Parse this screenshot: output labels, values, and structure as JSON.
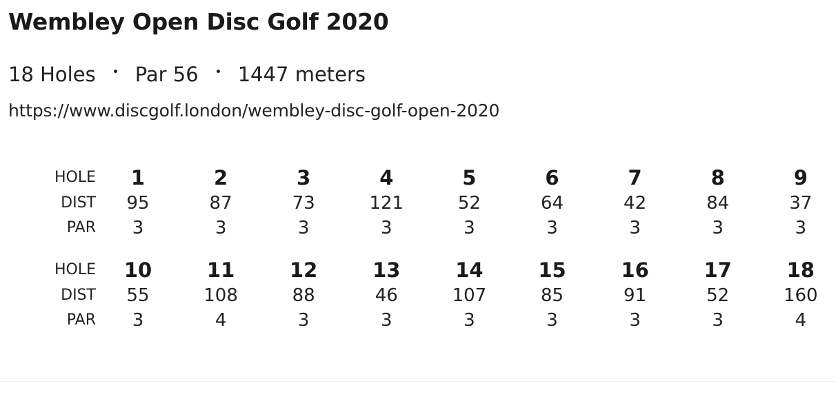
{
  "course": {
    "title": "Wembley Open Disc Golf 2020",
    "holes_text": "18 Holes",
    "par_text": "Par 56",
    "distance_text": "1447 meters",
    "url": "https://www.discgolf.london/wembley-disc-golf-open-2020"
  },
  "scorecard": {
    "labels": {
      "hole": "HOLE",
      "dist": "DIST",
      "par": "PAR"
    },
    "holes": [
      {
        "hole": "1",
        "dist": "95",
        "par": "3"
      },
      {
        "hole": "2",
        "dist": "87",
        "par": "3"
      },
      {
        "hole": "3",
        "dist": "73",
        "par": "3"
      },
      {
        "hole": "4",
        "dist": "121",
        "par": "3"
      },
      {
        "hole": "5",
        "dist": "52",
        "par": "3"
      },
      {
        "hole": "6",
        "dist": "64",
        "par": "3"
      },
      {
        "hole": "7",
        "dist": "42",
        "par": "3"
      },
      {
        "hole": "8",
        "dist": "84",
        "par": "3"
      },
      {
        "hole": "9",
        "dist": "37",
        "par": "3"
      },
      {
        "hole": "10",
        "dist": "55",
        "par": "3"
      },
      {
        "hole": "11",
        "dist": "108",
        "par": "4"
      },
      {
        "hole": "12",
        "dist": "88",
        "par": "3"
      },
      {
        "hole": "13",
        "dist": "46",
        "par": "3"
      },
      {
        "hole": "14",
        "dist": "107",
        "par": "3"
      },
      {
        "hole": "15",
        "dist": "85",
        "par": "3"
      },
      {
        "hole": "16",
        "dist": "91",
        "par": "3"
      },
      {
        "hole": "17",
        "dist": "52",
        "par": "3"
      },
      {
        "hole": "18",
        "dist": "160",
        "par": "4"
      }
    ]
  }
}
